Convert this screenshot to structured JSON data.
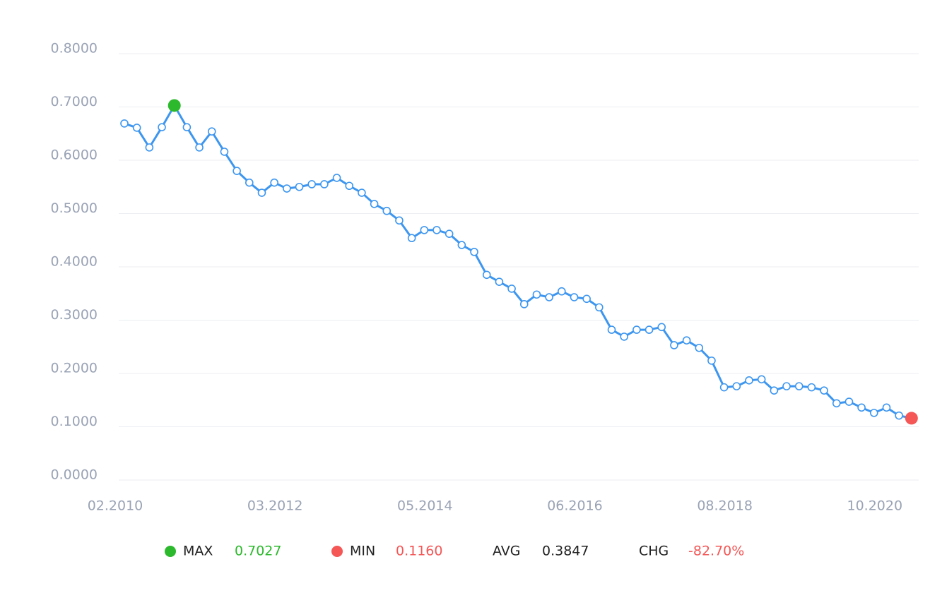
{
  "chart_data": {
    "type": "line",
    "categories": [
      "02.2010",
      null,
      null,
      null,
      null,
      null,
      null,
      null,
      null,
      null,
      null,
      null,
      "03.2012",
      null,
      null,
      null,
      null,
      null,
      null,
      null,
      null,
      null,
      null,
      null,
      "05.2014",
      null,
      null,
      null,
      null,
      null,
      null,
      null,
      null,
      null,
      null,
      null,
      "06.2016",
      null,
      null,
      null,
      null,
      null,
      null,
      null,
      null,
      null,
      null,
      null,
      "08.2018",
      null,
      null,
      null,
      null,
      null,
      null,
      null,
      null,
      null,
      null,
      null,
      "10.2020",
      null,
      null,
      null
    ],
    "series": [
      {
        "name": "value",
        "color": "#3d96ef",
        "values": [
          0.669,
          0.661,
          0.624,
          0.662,
          0.7027,
          0.662,
          0.624,
          0.654,
          0.616,
          0.58,
          0.558,
          0.539,
          0.558,
          0.547,
          0.55,
          0.555,
          0.555,
          0.567,
          0.552,
          0.539,
          0.518,
          0.505,
          0.487,
          0.454,
          0.469,
          0.469,
          0.462,
          0.441,
          0.428,
          0.385,
          0.372,
          0.359,
          0.33,
          0.348,
          0.343,
          0.354,
          0.343,
          0.34,
          0.324,
          0.282,
          0.269,
          0.282,
          0.282,
          0.287,
          0.253,
          0.262,
          0.248,
          0.224,
          0.174,
          0.176,
          0.187,
          0.189,
          0.168,
          0.176,
          0.176,
          0.174,
          0.168,
          0.144,
          0.147,
          0.136,
          0.126,
          0.136,
          0.121,
          0.116
        ]
      }
    ],
    "ylim": [
      0,
      0.8
    ],
    "yticks": [
      {
        "value": 0,
        "label": "0.0000"
      },
      {
        "value": 0.1,
        "label": "0.1000"
      },
      {
        "value": 0.2,
        "label": "0.2000"
      },
      {
        "value": 0.3,
        "label": "0.3000"
      },
      {
        "value": 0.4,
        "label": "0.4000"
      },
      {
        "value": 0.5,
        "label": "0.5000"
      },
      {
        "value": 0.6,
        "label": "0.6000"
      },
      {
        "value": 0.7,
        "label": "0.7000"
      },
      {
        "value": 0.8,
        "label": "0.8000"
      }
    ],
    "grid": true,
    "max_color": "#2db92d",
    "min_color": "#f55656",
    "stats": [
      {
        "label": "MAX",
        "value": "0.7027",
        "color": "#2db92d",
        "dot": true
      },
      {
        "label": "MIN",
        "value": "0.1160",
        "color": "#f55656",
        "dot": true
      },
      {
        "label": "AVG",
        "value": "0.3847",
        "color": "#222222",
        "dot": false
      },
      {
        "label": "CHG",
        "value": "-82.70%",
        "color": "#f55656",
        "dot": false
      }
    ]
  }
}
